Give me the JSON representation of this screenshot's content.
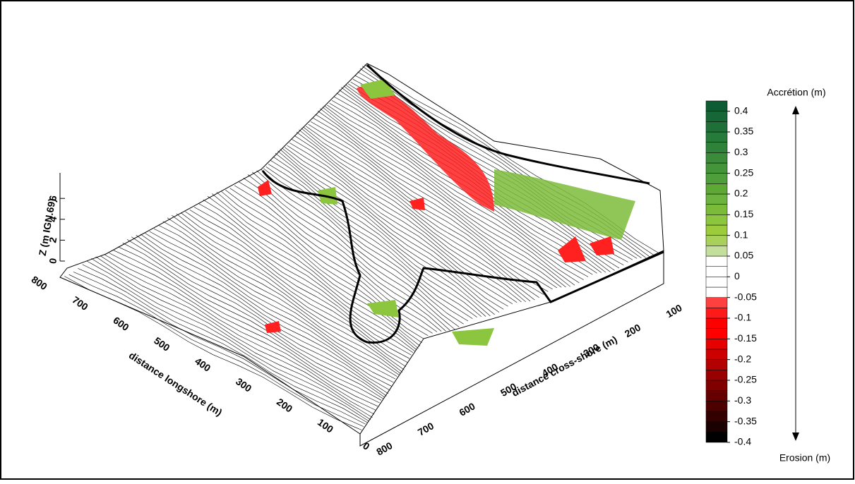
{
  "chart_data": {
    "type": "surface3d",
    "xlabel": "distance cross-shore (m)",
    "ylabel": "distance longshore (m)",
    "zlabel": "Z (m IGN.69)",
    "xticks": [
      800,
      700,
      600,
      500,
      400,
      300,
      200,
      100
    ],
    "yticks": [
      800,
      700,
      600,
      500,
      400,
      300,
      200,
      100,
      0
    ],
    "zticks": [
      6,
      4,
      2,
      0
    ],
    "colorbar": {
      "top_label": "Accrétion (m)",
      "bottom_label": "Erosion (m)",
      "lim": [
        -0.4,
        0.425
      ],
      "ticks": [
        0.4,
        0.35,
        0.3,
        0.25,
        0.2,
        0.15,
        0.1,
        0.05,
        0,
        -0.05,
        -0.1,
        -0.15,
        -0.2,
        -0.25,
        -0.3,
        -0.35,
        -0.4
      ],
      "levels": [
        -0.4,
        -0.375,
        -0.35,
        -0.325,
        -0.3,
        -0.275,
        -0.25,
        -0.225,
        -0.2,
        -0.175,
        -0.15,
        -0.125,
        -0.1,
        -0.075,
        -0.05,
        -0.025,
        0,
        0.025,
        0.05,
        0.075,
        0.1,
        0.125,
        0.15,
        0.175,
        0.2,
        0.225,
        0.25,
        0.275,
        0.3,
        0.325,
        0.35,
        0.375,
        0.4,
        0.425
      ],
      "colors": [
        "#000000",
        "#1a0000",
        "#330000",
        "#4d0000",
        "#660000",
        "#800000",
        "#990000",
        "#b30000",
        "#cc0000",
        "#e60000",
        "#ff0000",
        "#ff0000",
        "#ff1a1a",
        "#ff4040",
        "#ffffff",
        "#ffffff",
        "#ffffff",
        "#ffffff",
        "#c4df9b",
        "#a8d05a",
        "#9ccb3b",
        "#8cc63f",
        "#7cbb3a",
        "#6db33f",
        "#5ea836",
        "#4f9e3c",
        "#44953a",
        "#3a8c3a",
        "#2f8239",
        "#267a3a",
        "#1e7038",
        "#166636",
        "#0e5c33"
      ]
    }
  }
}
